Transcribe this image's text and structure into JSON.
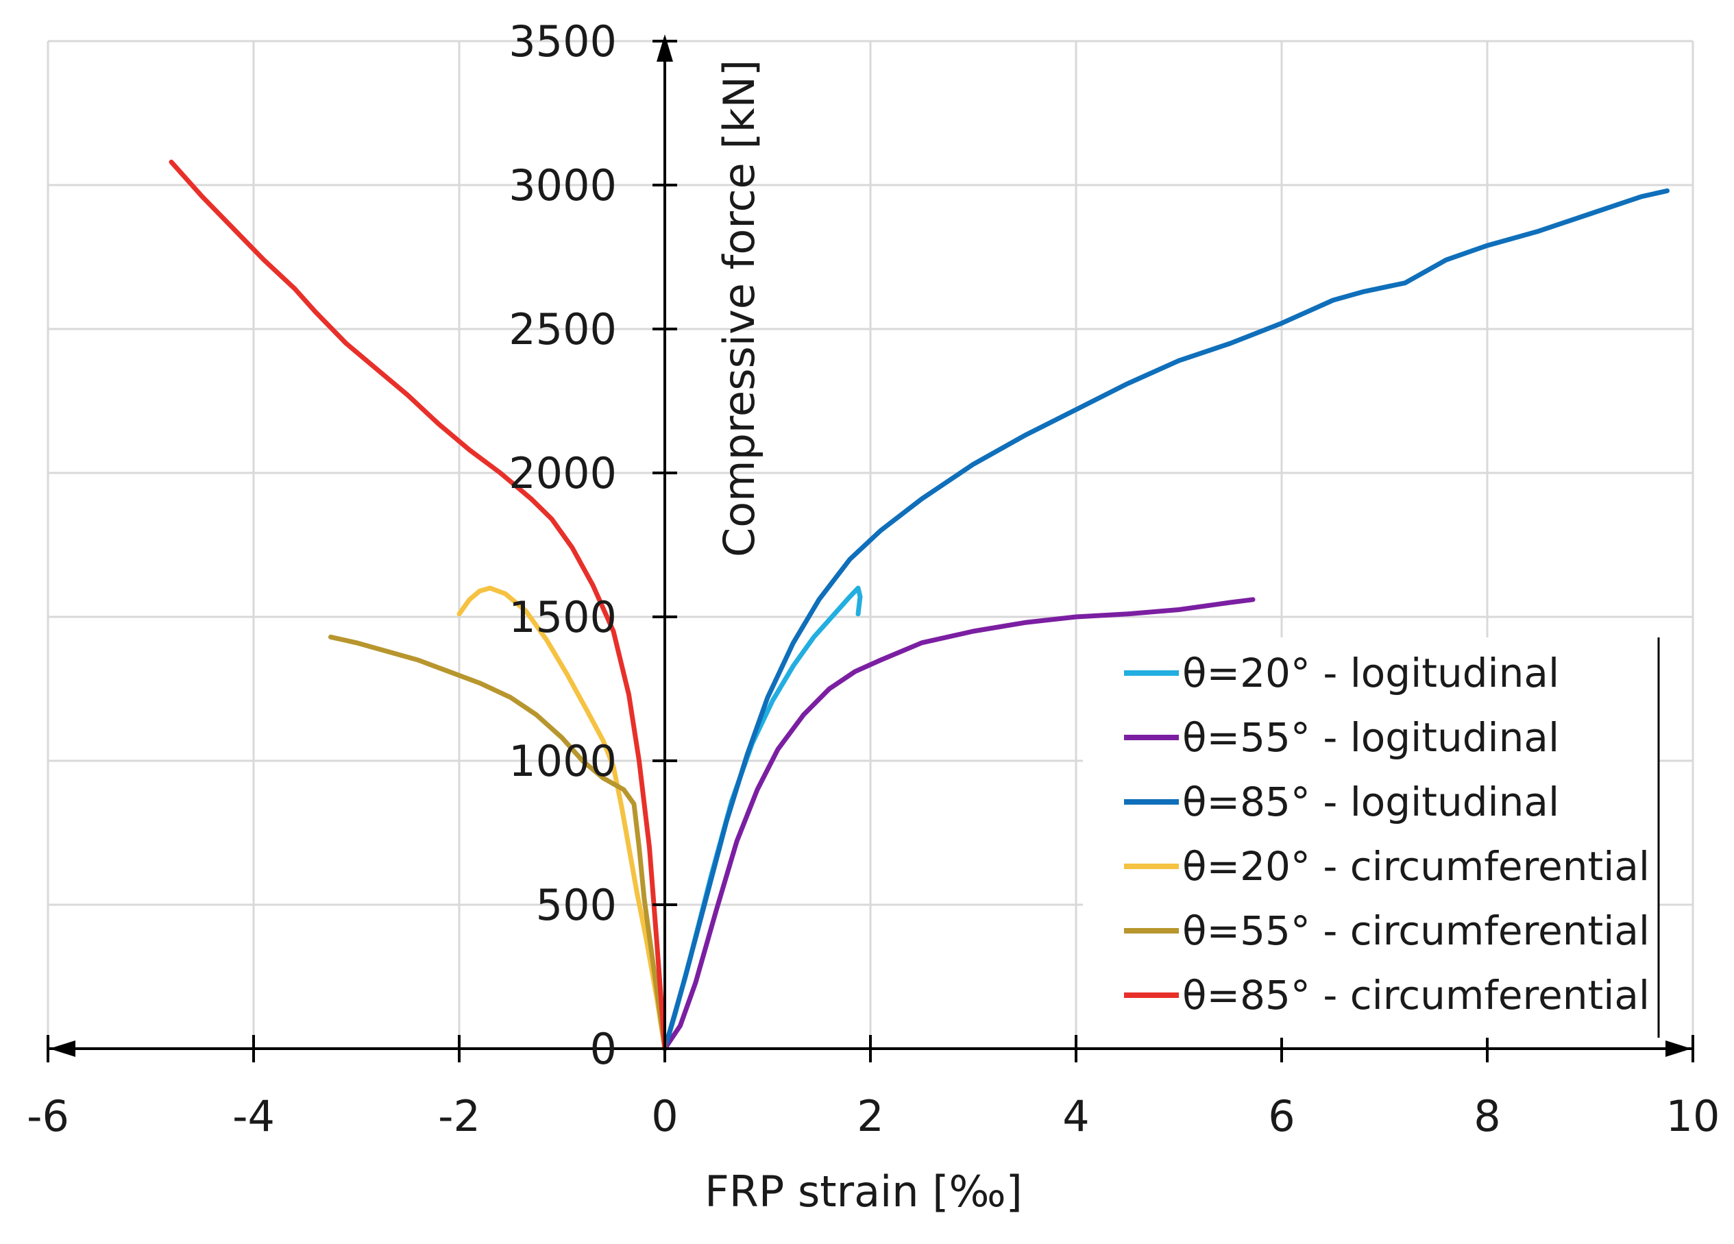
{
  "chart_data": {
    "type": "line",
    "title": "",
    "xlabel": "FRP strain [‰]",
    "ylabel": "Compressive force [kN]",
    "xlim": [
      -6,
      10
    ],
    "ylim": [
      0,
      3500
    ],
    "x_ticks": [
      -6,
      -4,
      -2,
      0,
      2,
      4,
      6,
      8,
      10
    ],
    "x_tick_labels": [
      "-6",
      "-4",
      "-2",
      "0",
      "2",
      "4",
      "6",
      "8",
      "10"
    ],
    "y_ticks": [
      0,
      500,
      1000,
      1500,
      2000,
      2500,
      3000,
      3500
    ],
    "y_tick_labels": [
      "0",
      "500",
      "1000",
      "1500",
      "2000",
      "2500",
      "3000",
      "3500"
    ],
    "grid": true,
    "legend_position": "lower-right",
    "series": [
      {
        "name": "θ=20° - logitudinal",
        "color": "#22aee0",
        "x": [
          0,
          0.1,
          0.25,
          0.45,
          0.65,
          0.85,
          1.05,
          1.25,
          1.45,
          1.65,
          1.8,
          1.88,
          1.9,
          1.88
        ],
        "y": [
          0,
          120,
          320,
          600,
          860,
          1060,
          1210,
          1330,
          1430,
          1510,
          1570,
          1600,
          1570,
          1510
        ]
      },
      {
        "name": "θ=55° - logitudinal",
        "color": "#7b1fa2",
        "x": [
          0,
          0.15,
          0.3,
          0.5,
          0.7,
          0.9,
          1.1,
          1.35,
          1.6,
          1.85,
          2.1,
          2.5,
          3.0,
          3.5,
          4.0,
          4.5,
          5.0,
          5.5,
          5.72
        ],
        "y": [
          0,
          80,
          230,
          480,
          720,
          900,
          1040,
          1160,
          1250,
          1310,
          1350,
          1410,
          1450,
          1480,
          1500,
          1510,
          1525,
          1550,
          1560
        ]
      },
      {
        "name": "θ=85° - logitudinal",
        "color": "#0f6fba",
        "x": [
          0,
          0.2,
          0.4,
          0.6,
          0.8,
          1.0,
          1.25,
          1.5,
          1.8,
          2.1,
          2.5,
          3.0,
          3.5,
          4.0,
          4.5,
          5.0,
          5.5,
          6.0,
          6.5,
          6.8,
          7.2,
          7.6,
          8.0,
          8.5,
          9.0,
          9.5,
          9.75
        ],
        "y": [
          0,
          250,
          520,
          790,
          1020,
          1220,
          1410,
          1560,
          1700,
          1800,
          1910,
          2030,
          2130,
          2220,
          2310,
          2390,
          2450,
          2520,
          2600,
          2630,
          2660,
          2740,
          2790,
          2840,
          2900,
          2960,
          2980
        ]
      },
      {
        "name": "θ=20° - circumferential",
        "color": "#f5c242",
        "x": [
          -2.0,
          -1.9,
          -1.8,
          -1.7,
          -1.55,
          -1.35,
          -1.15,
          -0.95,
          -0.75,
          -0.6,
          -0.5,
          -0.42,
          -0.35,
          -0.27,
          -0.18,
          -0.08,
          0
        ],
        "y": [
          1510,
          1560,
          1590,
          1600,
          1580,
          1520,
          1420,
          1300,
          1170,
          1070,
          980,
          840,
          700,
          540,
          380,
          180,
          0
        ]
      },
      {
        "name": "θ=55° - circumferential",
        "color": "#b8962e",
        "x": [
          -3.25,
          -3.0,
          -2.7,
          -2.4,
          -2.1,
          -1.8,
          -1.5,
          -1.25,
          -1.0,
          -0.8,
          -0.6,
          -0.4,
          -0.3,
          -0.25,
          -0.2,
          -0.1,
          0
        ],
        "y": [
          1430,
          1410,
          1380,
          1350,
          1310,
          1270,
          1220,
          1160,
          1080,
          1000,
          940,
          900,
          850,
          700,
          520,
          260,
          0
        ]
      },
      {
        "name": "θ=85° - circumferential",
        "color": "#e8302a",
        "x": [
          -4.8,
          -4.5,
          -4.2,
          -3.9,
          -3.6,
          -3.4,
          -3.1,
          -2.8,
          -2.5,
          -2.2,
          -1.9,
          -1.6,
          -1.3,
          -1.1,
          -0.9,
          -0.7,
          -0.5,
          -0.35,
          -0.25,
          -0.15,
          -0.08,
          0
        ],
        "y": [
          3080,
          2960,
          2850,
          2740,
          2640,
          2560,
          2450,
          2360,
          2270,
          2170,
          2080,
          2000,
          1910,
          1840,
          1740,
          1610,
          1450,
          1230,
          1000,
          700,
          380,
          0
        ]
      }
    ]
  }
}
